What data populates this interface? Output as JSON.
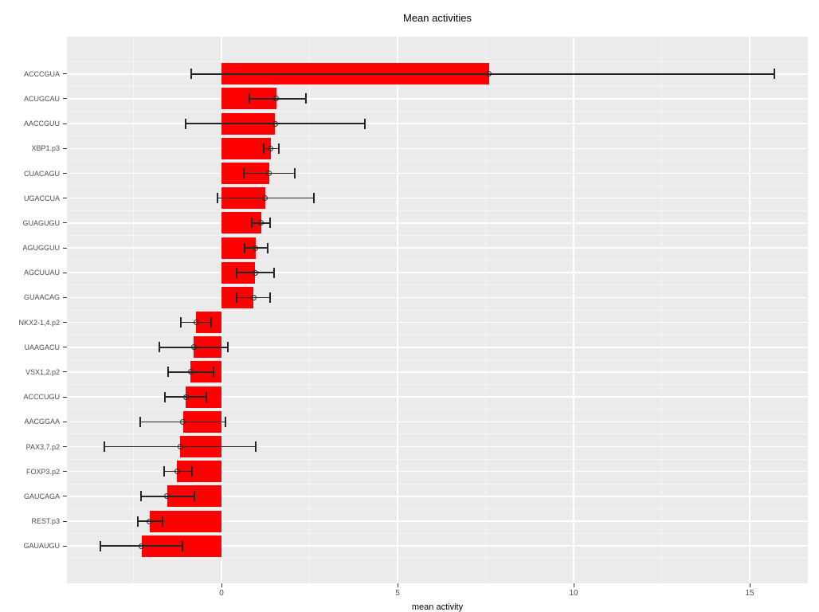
{
  "title": "Mean activities",
  "chart_data": {
    "type": "bar",
    "orientation": "horizontal",
    "title": "Mean activities",
    "xlabel": "mean activity",
    "ylabel": "",
    "legend_position": "none",
    "grid": "on",
    "categories": [
      "ACCCGUA",
      "ACUGCAU",
      "AACCGUU",
      "XBP1.p3",
      "CUACAGU",
      "UGACCUA",
      "GUAGUGU",
      "AGUGGUU",
      "AGCUUAU",
      "GUAACAG",
      "NKX2-1,4.p2",
      "UAAGACU",
      "VSX1,2.p2",
      "ACCCUGU",
      "AACGGAA",
      "PAX3,7.p2",
      "FOXP3.p2",
      "GAUCAGA",
      "REST.p3",
      "GAUAUGU"
    ],
    "series": [
      {
        "name": "mean activity",
        "values": [
          7.6,
          1.55,
          1.52,
          1.4,
          1.35,
          1.24,
          1.12,
          0.97,
          0.96,
          0.91,
          -0.72,
          -0.79,
          -0.88,
          -1.01,
          -1.09,
          -1.17,
          -1.26,
          -1.54,
          -2.04,
          -2.27
        ],
        "error_low": [
          -0.86,
          0.8,
          -1.03,
          1.19,
          0.63,
          -0.12,
          0.86,
          0.66,
          0.44,
          0.43,
          -1.15,
          -1.76,
          -1.52,
          -1.61,
          -2.31,
          -3.33,
          -1.63,
          -2.29,
          -2.38,
          -3.44
        ],
        "error_high": [
          15.7,
          2.39,
          4.07,
          1.62,
          2.07,
          2.62,
          1.39,
          1.3,
          1.49,
          1.39,
          -0.29,
          0.19,
          -0.22,
          -0.42,
          0.11,
          0.97,
          -0.84,
          -0.78,
          -1.68,
          -1.12
        ]
      }
    ],
    "xlim": [
      -4.39,
      16.65
    ],
    "xticks": [
      0,
      5,
      10,
      15
    ],
    "xticks_minor": [
      -2.5,
      2.5,
      7.5,
      12.5
    ],
    "colors": {
      "bar": "#ff0000",
      "panel_background": "#ebebeb",
      "grid_major": "#ffffff",
      "grid_minor": "#f5f5f5",
      "error_bar": "#262626",
      "axis_text": "#4d4d4d",
      "title_text": "#000000"
    }
  }
}
